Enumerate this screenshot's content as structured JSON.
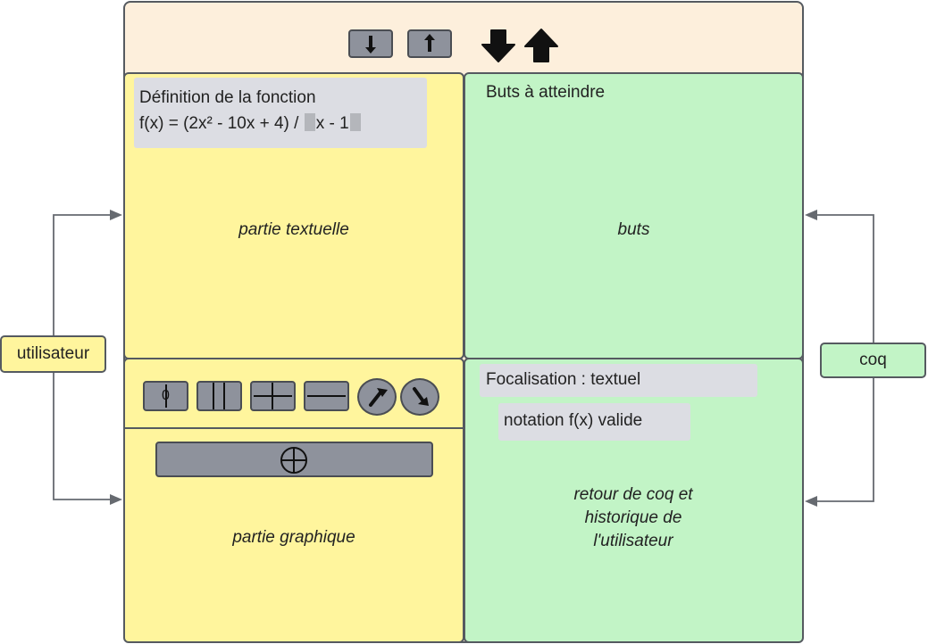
{
  "diagram": {
    "text_panel": {
      "definition_title": "Définition de la fonction",
      "formula_part1": "f(x) = (2x² - 10x + 4) / ",
      "formula_part2": "x - 1",
      "label": "partie textuelle"
    },
    "goals_panel": {
      "title": "Buts à atteindre",
      "label": "buts"
    },
    "graph_panel": {
      "label": "partie graphique",
      "tool_zero_label": "0"
    },
    "feedback_panel": {
      "focus": "Focalisation : textuel",
      "message": "notation f(x) valide",
      "label_line1": "retour de coq et",
      "label_line2": "historique de",
      "label_line3": "l'utilisateur"
    },
    "actors": {
      "user": "utilisateur",
      "coq": "coq"
    }
  },
  "colors": {
    "toolbar_bg": "#fdefdc",
    "text_panel_bg": "#fff59d",
    "goals_panel_bg": "#c2f4c6",
    "button_gray": "#8e929c",
    "message_box_bg": "#dcdde3",
    "border": "#555a60"
  },
  "icons": {
    "toolbar": [
      "arrow-down-button-icon",
      "arrow-up-button-icon",
      "big-arrow-down-icon",
      "big-arrow-up-icon"
    ],
    "graph_tools": [
      "zero-tool-icon",
      "vertical-lines-tool-icon",
      "plus-tool-icon",
      "minus-tool-icon",
      "rotate-left-tool-icon",
      "rotate-right-tool-icon",
      "crosshair-icon"
    ]
  }
}
